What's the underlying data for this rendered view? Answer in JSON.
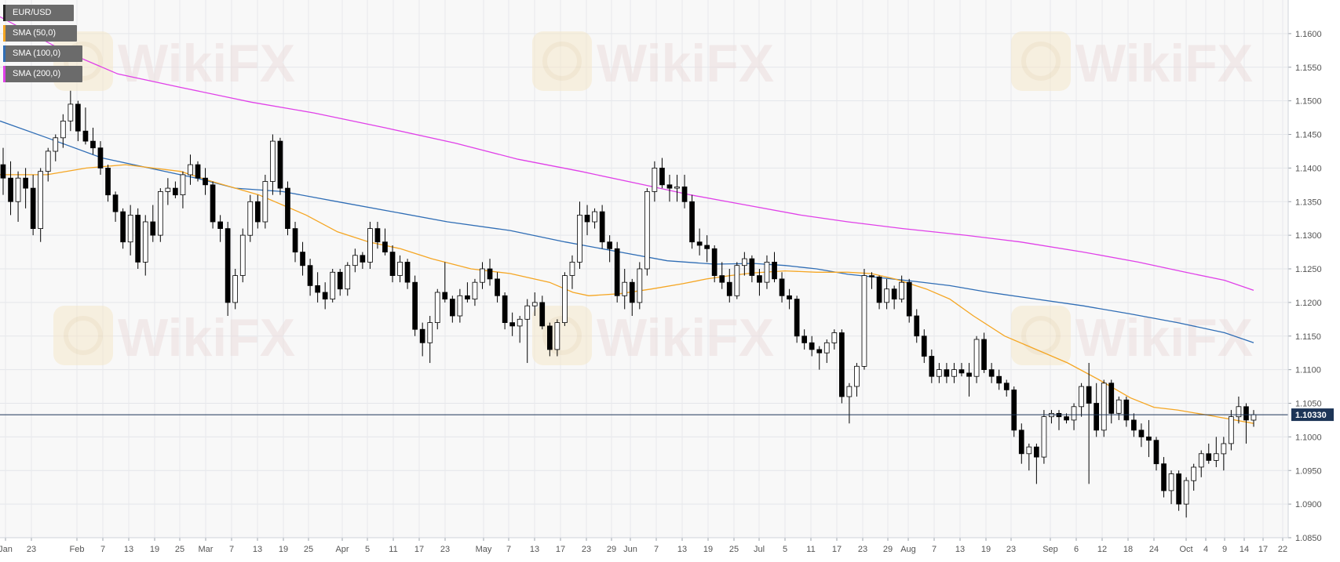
{
  "chart_data": {
    "type": "candlestick",
    "symbol": "EUR/USD",
    "indicators": [
      {
        "name": "SMA (50,0)",
        "color": "#f5a623"
      },
      {
        "name": "SMA (100,0)",
        "color": "#2f6db5"
      },
      {
        "name": "SMA (200,0)",
        "color": "#e040e8"
      }
    ],
    "price_axis": {
      "ticks": [
        "1.1600",
        "1.1550",
        "1.1500",
        "1.1450",
        "1.1400",
        "1.1350",
        "1.1300",
        "1.1250",
        "1.1200",
        "1.1150",
        "1.1100",
        "1.1050",
        "1.1000",
        "1.0950",
        "1.0900",
        "1.0850"
      ],
      "range": [
        1.085,
        1.165
      ]
    },
    "current_price": {
      "value": 1.1033,
      "label": "1.10330"
    },
    "time_axis": {
      "labels": [
        "Jan",
        "23",
        "Feb",
        "7",
        "13",
        "19",
        "25",
        "Mar",
        "7",
        "13",
        "19",
        "25",
        "Apr",
        "5",
        "11",
        "17",
        "23",
        "May",
        "7",
        "13",
        "17",
        "23",
        "29",
        "Jun",
        "7",
        "13",
        "19",
        "25",
        "Jul",
        "5",
        "11",
        "17",
        "23",
        "29",
        "Aug",
        "7",
        "13",
        "19",
        "23",
        "Sep",
        "6",
        "12",
        "18",
        "24",
        "Oct",
        "4",
        "9",
        "14",
        "17",
        "22"
      ]
    },
    "series_colors": {
      "up_body": "#ffffff",
      "down_body": "#000000",
      "wick": "#000000"
    },
    "sma50": [
      [
        0,
        1.139
      ],
      [
        60,
        1.139
      ],
      [
        110,
        1.14
      ],
      [
        160,
        1.1405
      ],
      [
        230,
        1.1395
      ],
      [
        270,
        1.138
      ],
      [
        330,
        1.136
      ],
      [
        390,
        1.133
      ],
      [
        430,
        1.1305
      ],
      [
        470,
        1.129
      ],
      [
        510,
        1.128
      ],
      [
        550,
        1.1265
      ],
      [
        600,
        1.125
      ],
      [
        650,
        1.1243
      ],
      [
        700,
        1.123
      ],
      [
        730,
        1.1215
      ],
      [
        750,
        1.121
      ],
      [
        790,
        1.1213
      ],
      [
        830,
        1.122
      ],
      [
        870,
        1.1228
      ],
      [
        900,
        1.1235
      ],
      [
        930,
        1.124
      ],
      [
        960,
        1.1244
      ],
      [
        1000,
        1.1247
      ],
      [
        1040,
        1.1245
      ],
      [
        1080,
        1.1245
      ],
      [
        1110,
        1.1243
      ],
      [
        1140,
        1.1235
      ],
      [
        1180,
        1.122
      ],
      [
        1210,
        1.1205
      ],
      [
        1240,
        1.118
      ],
      [
        1280,
        1.115
      ],
      [
        1320,
        1.113
      ],
      [
        1360,
        1.111
      ],
      [
        1400,
        1.1085
      ],
      [
        1440,
        1.1058
      ],
      [
        1470,
        1.1044
      ],
      [
        1500,
        1.104
      ],
      [
        1540,
        1.1032
      ],
      [
        1597,
        1.102
      ]
    ],
    "sma100": [
      [
        0,
        1.147
      ],
      [
        60,
        1.1445
      ],
      [
        130,
        1.1415
      ],
      [
        190,
        1.14
      ],
      [
        250,
        1.1385
      ],
      [
        300,
        1.137
      ],
      [
        360,
        1.1365
      ],
      [
        430,
        1.135
      ],
      [
        500,
        1.1335
      ],
      [
        570,
        1.132
      ],
      [
        650,
        1.1307
      ],
      [
        720,
        1.129
      ],
      [
        790,
        1.1275
      ],
      [
        850,
        1.1262
      ],
      [
        910,
        1.1257
      ],
      [
        960,
        1.1258
      ],
      [
        1000,
        1.1255
      ],
      [
        1040,
        1.125
      ],
      [
        1080,
        1.1242
      ],
      [
        1120,
        1.1237
      ],
      [
        1160,
        1.1232
      ],
      [
        1210,
        1.1225
      ],
      [
        1260,
        1.1215
      ],
      [
        1320,
        1.1205
      ],
      [
        1380,
        1.1195
      ],
      [
        1440,
        1.1183
      ],
      [
        1500,
        1.117
      ],
      [
        1560,
        1.1155
      ],
      [
        1597,
        1.114
      ]
    ],
    "sma200": [
      [
        0,
        1.1625
      ],
      [
        80,
        1.1575
      ],
      [
        150,
        1.154
      ],
      [
        230,
        1.152
      ],
      [
        320,
        1.1498
      ],
      [
        400,
        1.1482
      ],
      [
        490,
        1.146
      ],
      [
        580,
        1.1437
      ],
      [
        660,
        1.1413
      ],
      [
        740,
        1.1395
      ],
      [
        820,
        1.1375
      ],
      [
        880,
        1.136
      ],
      [
        950,
        1.1345
      ],
      [
        1020,
        1.133
      ],
      [
        1080,
        1.132
      ],
      [
        1150,
        1.131
      ],
      [
        1230,
        1.13
      ],
      [
        1300,
        1.129
      ],
      [
        1380,
        1.1275
      ],
      [
        1450,
        1.126
      ],
      [
        1510,
        1.1245
      ],
      [
        1560,
        1.1233
      ],
      [
        1597,
        1.1218
      ]
    ],
    "candles": [
      [
        1.1405,
        1.143,
        1.136,
        1.1385
      ],
      [
        1.1385,
        1.141,
        1.133,
        1.135
      ],
      [
        1.135,
        1.1395,
        1.132,
        1.1385
      ],
      [
        1.1385,
        1.14,
        1.134,
        1.137
      ],
      [
        1.137,
        1.139,
        1.13,
        1.131
      ],
      [
        1.131,
        1.14,
        1.129,
        1.1395
      ],
      [
        1.1395,
        1.143,
        1.138,
        1.1425
      ],
      [
        1.1425,
        1.145,
        1.141,
        1.1445
      ],
      [
        1.1445,
        1.148,
        1.143,
        1.147
      ],
      [
        1.147,
        1.1515,
        1.1455,
        1.1495
      ],
      [
        1.1495,
        1.15,
        1.144,
        1.1455
      ],
      [
        1.1455,
        1.149,
        1.1435,
        1.144
      ],
      [
        1.144,
        1.146,
        1.142,
        1.143
      ],
      [
        1.143,
        1.144,
        1.139,
        1.14
      ],
      [
        1.14,
        1.1405,
        1.135,
        1.136
      ],
      [
        1.136,
        1.1365,
        1.132,
        1.1335
      ],
      [
        1.1335,
        1.134,
        1.128,
        1.129
      ],
      [
        1.129,
        1.1345,
        1.127,
        1.133
      ],
      [
        1.133,
        1.134,
        1.125,
        1.126
      ],
      [
        1.126,
        1.133,
        1.124,
        1.132
      ],
      [
        1.132,
        1.1345,
        1.129,
        1.13
      ],
      [
        1.13,
        1.137,
        1.129,
        1.1365
      ],
      [
        1.1365,
        1.1385,
        1.1345,
        1.137
      ],
      [
        1.137,
        1.138,
        1.1355,
        1.136
      ],
      [
        1.136,
        1.1395,
        1.134,
        1.139
      ],
      [
        1.139,
        1.142,
        1.1375,
        1.1405
      ],
      [
        1.1405,
        1.141,
        1.138,
        1.1385
      ],
      [
        1.1385,
        1.14,
        1.136,
        1.1375
      ],
      [
        1.1375,
        1.138,
        1.131,
        1.132
      ],
      [
        1.132,
        1.133,
        1.129,
        1.131
      ],
      [
        1.131,
        1.132,
        1.118,
        1.12
      ],
      [
        1.12,
        1.125,
        1.119,
        1.124
      ],
      [
        1.124,
        1.131,
        1.123,
        1.13
      ],
      [
        1.13,
        1.136,
        1.129,
        1.135
      ],
      [
        1.135,
        1.136,
        1.131,
        1.132
      ],
      [
        1.132,
        1.139,
        1.131,
        1.138
      ],
      [
        1.138,
        1.145,
        1.136,
        1.144
      ],
      [
        1.144,
        1.1445,
        1.136,
        1.137
      ],
      [
        1.137,
        1.138,
        1.13,
        1.131
      ],
      [
        1.131,
        1.132,
        1.126,
        1.1275
      ],
      [
        1.1275,
        1.129,
        1.124,
        1.1255
      ],
      [
        1.1255,
        1.1265,
        1.121,
        1.1225
      ],
      [
        1.1225,
        1.1245,
        1.12,
        1.1215
      ],
      [
        1.1215,
        1.123,
        1.119,
        1.1205
      ],
      [
        1.1205,
        1.125,
        1.12,
        1.1245
      ],
      [
        1.1245,
        1.125,
        1.121,
        1.122
      ],
      [
        1.122,
        1.126,
        1.121,
        1.1255
      ],
      [
        1.1255,
        1.128,
        1.1245,
        1.127
      ],
      [
        1.127,
        1.1275,
        1.125,
        1.126
      ],
      [
        1.126,
        1.132,
        1.125,
        1.131
      ],
      [
        1.131,
        1.132,
        1.128,
        1.129
      ],
      [
        1.129,
        1.131,
        1.127,
        1.1275
      ],
      [
        1.1275,
        1.1285,
        1.123,
        1.124
      ],
      [
        1.124,
        1.127,
        1.123,
        1.126
      ],
      [
        1.126,
        1.1265,
        1.122,
        1.123
      ],
      [
        1.123,
        1.124,
        1.115,
        1.116
      ],
      [
        1.116,
        1.117,
        1.112,
        1.114
      ],
      [
        1.114,
        1.118,
        1.111,
        1.117
      ],
      [
        1.117,
        1.122,
        1.116,
        1.1215
      ],
      [
        1.1215,
        1.126,
        1.12,
        1.1205
      ],
      [
        1.1205,
        1.121,
        1.117,
        1.118
      ],
      [
        1.118,
        1.122,
        1.117,
        1.121
      ],
      [
        1.121,
        1.123,
        1.12,
        1.1205
      ],
      [
        1.1205,
        1.1235,
        1.1195,
        1.123
      ],
      [
        1.123,
        1.126,
        1.122,
        1.125
      ],
      [
        1.125,
        1.1265,
        1.1225,
        1.1235
      ],
      [
        1.1235,
        1.1245,
        1.12,
        1.121
      ],
      [
        1.121,
        1.1215,
        1.116,
        1.117
      ],
      [
        1.117,
        1.1185,
        1.115,
        1.1165
      ],
      [
        1.1165,
        1.118,
        1.114,
        1.1175
      ],
      [
        1.1175,
        1.1205,
        1.111,
        1.1195
      ],
      [
        1.1195,
        1.1215,
        1.118,
        1.12
      ],
      [
        1.12,
        1.121,
        1.116,
        1.1165
      ],
      [
        1.1165,
        1.117,
        1.112,
        1.113
      ],
      [
        1.113,
        1.1175,
        1.112,
        1.117
      ],
      [
        1.117,
        1.1245,
        1.1165,
        1.124
      ],
      [
        1.124,
        1.127,
        1.122,
        1.126
      ],
      [
        1.126,
        1.135,
        1.125,
        1.133
      ],
      [
        1.133,
        1.1345,
        1.13,
        1.132
      ],
      [
        1.132,
        1.134,
        1.131,
        1.1335
      ],
      [
        1.1335,
        1.1345,
        1.128,
        1.129
      ],
      [
        1.129,
        1.13,
        1.126,
        1.128
      ],
      [
        1.128,
        1.129,
        1.12,
        1.121
      ],
      [
        1.121,
        1.125,
        1.119,
        1.123
      ],
      [
        1.123,
        1.1235,
        1.118,
        1.12
      ],
      [
        1.12,
        1.126,
        1.119,
        1.125
      ],
      [
        1.125,
        1.137,
        1.124,
        1.1365
      ],
      [
        1.1365,
        1.141,
        1.135,
        1.14
      ],
      [
        1.14,
        1.1415,
        1.137,
        1.1375
      ],
      [
        1.1375,
        1.139,
        1.135,
        1.137
      ],
      [
        1.137,
        1.139,
        1.135,
        1.1372
      ],
      [
        1.1372,
        1.139,
        1.134,
        1.135
      ],
      [
        1.135,
        1.136,
        1.128,
        1.129
      ],
      [
        1.129,
        1.131,
        1.127,
        1.1285
      ],
      [
        1.1285,
        1.13,
        1.126,
        1.128
      ],
      [
        1.128,
        1.1285,
        1.123,
        1.124
      ],
      [
        1.124,
        1.126,
        1.122,
        1.123
      ],
      [
        1.123,
        1.125,
        1.12,
        1.121
      ],
      [
        1.121,
        1.126,
        1.1205,
        1.1255
      ],
      [
        1.1255,
        1.1275,
        1.124,
        1.1265
      ],
      [
        1.1265,
        1.127,
        1.123,
        1.124
      ],
      [
        1.124,
        1.125,
        1.121,
        1.123
      ],
      [
        1.123,
        1.127,
        1.122,
        1.126
      ],
      [
        1.126,
        1.1275,
        1.123,
        1.1235
      ],
      [
        1.1235,
        1.1245,
        1.12,
        1.121
      ],
      [
        1.121,
        1.122,
        1.119,
        1.1205
      ],
      [
        1.1205,
        1.121,
        1.114,
        1.115
      ],
      [
        1.115,
        1.116,
        1.113,
        1.114
      ],
      [
        1.114,
        1.115,
        1.112,
        1.113
      ],
      [
        1.113,
        1.1135,
        1.11,
        1.1125
      ],
      [
        1.1125,
        1.1145,
        1.111,
        1.114
      ],
      [
        1.114,
        1.116,
        1.113,
        1.1155
      ],
      [
        1.1155,
        1.116,
        1.105,
        1.106
      ],
      [
        1.106,
        1.108,
        1.102,
        1.1075
      ],
      [
        1.1075,
        1.111,
        1.106,
        1.1105
      ],
      [
        1.1105,
        1.125,
        1.11,
        1.124
      ],
      [
        1.124,
        1.1245,
        1.122,
        1.1238
      ],
      [
        1.1238,
        1.124,
        1.119,
        1.12
      ],
      [
        1.12,
        1.1235,
        1.119,
        1.122
      ],
      [
        1.122,
        1.1225,
        1.119,
        1.1205
      ],
      [
        1.1205,
        1.124,
        1.12,
        1.123
      ],
      [
        1.123,
        1.1235,
        1.117,
        1.118
      ],
      [
        1.118,
        1.119,
        1.114,
        1.115
      ],
      [
        1.115,
        1.116,
        1.111,
        1.112
      ],
      [
        1.112,
        1.113,
        1.108,
        1.109
      ],
      [
        1.109,
        1.111,
        1.108,
        1.11
      ],
      [
        1.11,
        1.111,
        1.108,
        1.109
      ],
      [
        1.109,
        1.111,
        1.108,
        1.11
      ],
      [
        1.11,
        1.111,
        1.109,
        1.1095
      ],
      [
        1.1095,
        1.111,
        1.106,
        1.109
      ],
      [
        1.109,
        1.115,
        1.108,
        1.1145
      ],
      [
        1.1145,
        1.1155,
        1.1095,
        1.11
      ],
      [
        1.11,
        1.111,
        1.108,
        1.109
      ],
      [
        1.109,
        1.11,
        1.107,
        1.108
      ],
      [
        1.108,
        1.1085,
        1.106,
        1.107
      ],
      [
        1.107,
        1.1075,
        1.1,
        1.101
      ],
      [
        1.101,
        1.102,
        1.096,
        1.0975
      ],
      [
        1.0975,
        1.099,
        1.095,
        1.0985
      ],
      [
        1.0985,
        1.099,
        1.093,
        1.097
      ],
      [
        1.097,
        1.104,
        1.096,
        1.103
      ],
      [
        1.103,
        1.104,
        1.102,
        1.1035
      ],
      [
        1.1035,
        1.104,
        1.101,
        1.103
      ],
      [
        1.103,
        1.1035,
        1.102,
        1.1025
      ],
      [
        1.1025,
        1.105,
        1.101,
        1.1045
      ],
      [
        1.1045,
        1.108,
        1.103,
        1.1075
      ],
      [
        1.1075,
        1.111,
        1.093,
        1.105
      ],
      [
        1.105,
        1.108,
        1.1,
        1.101
      ],
      [
        1.101,
        1.1085,
        1.1,
        1.108
      ],
      [
        1.108,
        1.1085,
        1.102,
        1.1035
      ],
      [
        1.1035,
        1.106,
        1.1025,
        1.1055
      ],
      [
        1.1055,
        1.106,
        1.1015,
        1.1025
      ],
      [
        1.1025,
        1.1035,
        1.1,
        1.101
      ],
      [
        1.101,
        1.102,
        1.0985,
        1.1
      ],
      [
        1.1,
        1.1025,
        1.097,
        1.0995
      ],
      [
        1.0995,
        1.1,
        1.095,
        1.096
      ],
      [
        1.096,
        1.097,
        1.091,
        1.092
      ],
      [
        1.092,
        1.095,
        1.09,
        1.0945
      ],
      [
        1.0945,
        1.095,
        1.089,
        1.09
      ],
      [
        1.09,
        1.094,
        1.088,
        1.0935
      ],
      [
        1.0935,
        1.096,
        1.092,
        1.0955
      ],
      [
        1.0955,
        1.098,
        1.094,
        1.0975
      ],
      [
        1.0975,
        1.099,
        1.096,
        1.0965
      ],
      [
        1.0965,
        1.1,
        1.0955,
        1.0975
      ],
      [
        1.0975,
        1.1,
        1.095,
        1.099
      ],
      [
        1.099,
        1.104,
        1.098,
        1.103
      ],
      [
        1.103,
        1.106,
        1.102,
        1.1045
      ],
      [
        1.1045,
        1.105,
        1.099,
        1.1025
      ],
      [
        1.1025,
        1.104,
        1.1015,
        1.1033
      ]
    ]
  },
  "watermark": "WikiFX"
}
